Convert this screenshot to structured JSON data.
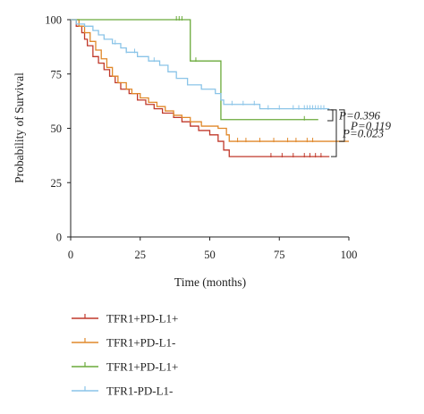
{
  "chart_data": {
    "type": "line",
    "subtype": "kaplan-meier",
    "xlabel": "Time (months)",
    "ylabel": "Probability of Survival",
    "xlim": [
      0,
      100
    ],
    "ylim": [
      0,
      100
    ],
    "xticks": [
      0,
      25,
      50,
      75,
      100
    ],
    "yticks": [
      0,
      25,
      50,
      75,
      100
    ],
    "grid": false,
    "legend_position": "bottom-left",
    "series": [
      {
        "name": "TFR1+PD-L1+",
        "color": "#c0392b",
        "steps": [
          [
            0,
            100
          ],
          [
            2,
            97
          ],
          [
            4,
            94
          ],
          [
            5,
            91
          ],
          [
            6,
            88
          ],
          [
            8,
            83
          ],
          [
            10,
            80
          ],
          [
            12,
            77
          ],
          [
            14,
            74
          ],
          [
            16,
            71
          ],
          [
            18,
            68
          ],
          [
            21,
            66
          ],
          [
            24,
            63
          ],
          [
            27,
            61
          ],
          [
            30,
            59
          ],
          [
            33,
            57
          ],
          [
            37,
            55
          ],
          [
            40,
            53
          ],
          [
            43,
            51
          ],
          [
            46,
            49
          ],
          [
            50,
            47
          ],
          [
            53,
            44
          ],
          [
            55,
            40
          ],
          [
            57,
            37
          ],
          [
            93,
            37
          ]
        ],
        "censored": [
          72,
          76,
          80,
          84,
          86,
          88,
          90
        ]
      },
      {
        "name": "TFR1+PD-L1-",
        "color": "#e0882a",
        "steps": [
          [
            0,
            100
          ],
          [
            3,
            97
          ],
          [
            5,
            94
          ],
          [
            7,
            90
          ],
          [
            9,
            86
          ],
          [
            11,
            82
          ],
          [
            13,
            78
          ],
          [
            15,
            74
          ],
          [
            17,
            71
          ],
          [
            20,
            68
          ],
          [
            22,
            66
          ],
          [
            25,
            64
          ],
          [
            28,
            62
          ],
          [
            31,
            60
          ],
          [
            34,
            58
          ],
          [
            37,
            56
          ],
          [
            40,
            55
          ],
          [
            43,
            53
          ],
          [
            47,
            51
          ],
          [
            53,
            50
          ],
          [
            56,
            47
          ],
          [
            57,
            44
          ],
          [
            100,
            44
          ]
        ],
        "censored": [
          60,
          63,
          68,
          73,
          78,
          81,
          85,
          87
        ]
      },
      {
        "name": "TFR1+PD-L1+",
        "color": "#6aaa3a",
        "steps": [
          [
            0,
            100
          ],
          [
            42,
            100
          ],
          [
            43,
            81
          ],
          [
            53,
            81
          ],
          [
            54,
            54
          ],
          [
            89,
            54
          ]
        ],
        "censored": [
          38,
          39,
          40,
          45,
          84
        ]
      },
      {
        "name": "TFR1-PD-L1-",
        "color": "#8ac4e8",
        "steps": [
          [
            0,
            100
          ],
          [
            2,
            98
          ],
          [
            5,
            97
          ],
          [
            8,
            95
          ],
          [
            10,
            93
          ],
          [
            12,
            91
          ],
          [
            15,
            89
          ],
          [
            18,
            87
          ],
          [
            20,
            85
          ],
          [
            24,
            83
          ],
          [
            28,
            81
          ],
          [
            32,
            79
          ],
          [
            35,
            76
          ],
          [
            38,
            73
          ],
          [
            42,
            70
          ],
          [
            47,
            68
          ],
          [
            52,
            66
          ],
          [
            54,
            63
          ],
          [
            55,
            61
          ],
          [
            66,
            61
          ],
          [
            68,
            59
          ],
          [
            93,
            59
          ]
        ],
        "censored": [
          16,
          20,
          23,
          30,
          58,
          62,
          66,
          71,
          75,
          80,
          82,
          84,
          85,
          86,
          87,
          88,
          89,
          90,
          91
        ]
      }
    ],
    "annotations": [
      {
        "text": "P=0.396",
        "y_top": 58.5,
        "y_bottom": 53.5
      },
      {
        "text": "P=0.119",
        "y_top": 58.5,
        "y_bottom": 44
      },
      {
        "text": "P=0.023",
        "y_top": 58.5,
        "y_bottom": 37
      }
    ]
  }
}
